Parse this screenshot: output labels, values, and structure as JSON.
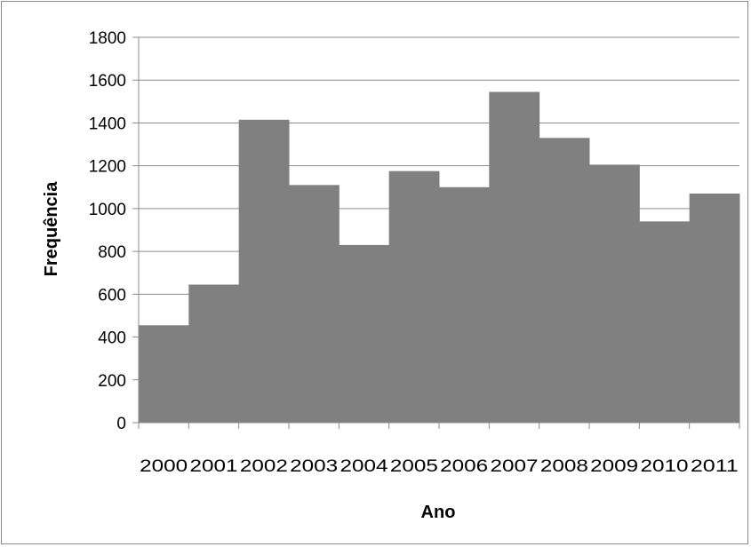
{
  "chart_data": {
    "type": "bar",
    "categories": [
      "2000",
      "2001",
      "2002",
      "2003",
      "2004",
      "2005",
      "2006",
      "2007",
      "2008",
      "2009",
      "2010",
      "2011"
    ],
    "values": [
      455,
      645,
      1415,
      1110,
      830,
      1175,
      1100,
      1545,
      1330,
      1205,
      940,
      1070
    ],
    "xlabel": "Ano",
    "ylabel": "Frequência",
    "ylim": [
      0,
      1800
    ],
    "yticks": [
      0,
      200,
      400,
      600,
      800,
      1000,
      1200,
      1400,
      1600,
      1800
    ],
    "grid": true,
    "legend": "none",
    "colors": {
      "bar": "#808080",
      "grid": "#8c8c8c",
      "axis": "#8c8c8c",
      "frame": "#8c8c8c"
    }
  }
}
